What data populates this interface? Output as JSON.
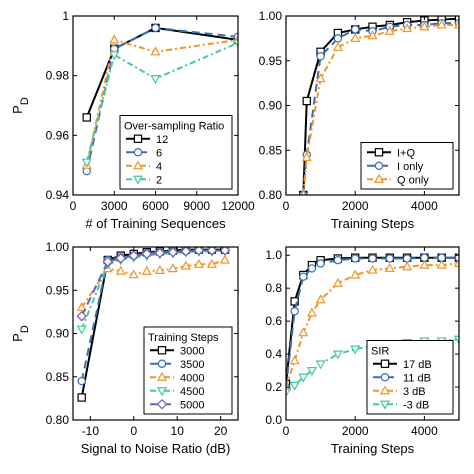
{
  "colors": {
    "black": "#000000",
    "blue": "#3a6fb0",
    "orange": "#f0962a",
    "green": "#44c8a4",
    "purple": "#6f61b0"
  },
  "chart_data": [
    {
      "panel": "top-left",
      "type": "line",
      "ylabel": "P_D",
      "xlabel": "# of Training Sequences",
      "xlim": [
        0,
        12000
      ],
      "ylim": [
        0.94,
        1.0
      ],
      "xticks": [
        "0",
        "3000",
        "6000",
        "9000",
        "12000"
      ],
      "yticks": [
        "0.94",
        "0.96",
        "0.98",
        "1"
      ],
      "legend": {
        "title": "Over-sampling Ratio",
        "position": "bottom-right"
      },
      "series": [
        {
          "name": "12",
          "color": "black",
          "dash": "solid",
          "marker": "square",
          "x": [
            1000,
            3000,
            6000,
            12000
          ],
          "y": [
            0.966,
            0.989,
            0.996,
            0.992
          ]
        },
        {
          "name": "6",
          "color": "blue",
          "dash": "dash",
          "marker": "circle",
          "x": [
            1000,
            3000,
            6000,
            12000
          ],
          "y": [
            0.948,
            0.989,
            0.996,
            0.993
          ]
        },
        {
          "name": "4",
          "color": "orange",
          "dash": "dashdot",
          "marker": "triangle-up",
          "x": [
            1000,
            3000,
            6000,
            12000
          ],
          "y": [
            0.95,
            0.992,
            0.988,
            0.992
          ]
        },
        {
          "name": "2",
          "color": "green",
          "dash": "dashdot",
          "marker": "triangle-down",
          "x": [
            1000,
            3000,
            6000,
            12000
          ],
          "y": [
            0.951,
            0.987,
            0.979,
            0.991
          ]
        }
      ]
    },
    {
      "panel": "top-right",
      "type": "line",
      "ylabel": "",
      "xlabel": "Training Steps",
      "xlim": [
        0,
        5000
      ],
      "ylim": [
        0.8,
        1.0
      ],
      "xticks": [
        "0",
        "2000",
        "4000"
      ],
      "yticks": [
        "0.80",
        "0.85",
        "0.90",
        "0.95",
        "1.00"
      ],
      "legend": {
        "title": "",
        "position": "bottom-right"
      },
      "series": [
        {
          "name": "I+Q",
          "color": "black",
          "dash": "solid",
          "marker": "square",
          "x": [
            500,
            600,
            1000,
            1500,
            2000,
            2500,
            3000,
            3500,
            4000,
            4500,
            5000
          ],
          "y": [
            0.8,
            0.905,
            0.96,
            0.981,
            0.985,
            0.988,
            0.99,
            0.993,
            0.995,
            0.996,
            0.997
          ]
        },
        {
          "name": "I only",
          "color": "blue",
          "dash": "dash",
          "marker": "circle",
          "x": [
            500,
            600,
            1000,
            1500,
            2000,
            2500,
            3000,
            3500,
            4000,
            4500,
            5000
          ],
          "y": [
            0.8,
            0.845,
            0.955,
            0.975,
            0.985,
            0.983,
            0.988,
            0.99,
            0.99,
            0.992,
            0.992
          ]
        },
        {
          "name": "Q only",
          "color": "orange",
          "dash": "dashdot",
          "marker": "triangle-up",
          "x": [
            500,
            600,
            1000,
            1500,
            2000,
            2500,
            3000,
            3500,
            4000,
            4500,
            5000
          ],
          "y": [
            0.8,
            0.842,
            0.93,
            0.965,
            0.975,
            0.978,
            0.983,
            0.986,
            0.988,
            0.99,
            0.99
          ]
        }
      ]
    },
    {
      "panel": "bottom-left",
      "type": "line",
      "ylabel": "P_D",
      "xlabel": "Signal to Noise Ratio (dB)",
      "xlim": [
        -14,
        24
      ],
      "ylim": [
        0.8,
        1.0
      ],
      "xticks": [
        "-10",
        "0",
        "10",
        "20"
      ],
      "yticks": [
        "0.80",
        "0.85",
        "0.90",
        "0.95",
        "1.00"
      ],
      "legend": {
        "title": "Training Steps",
        "position": "bottom-right"
      },
      "series": [
        {
          "name": "3000",
          "color": "black",
          "dash": "solid",
          "marker": "square",
          "x": [
            -12,
            -6,
            -3,
            0,
            3,
            6,
            9,
            12,
            15,
            18,
            21
          ],
          "y": [
            0.826,
            0.985,
            0.99,
            0.992,
            0.994,
            0.995,
            0.996,
            0.997,
            0.997,
            0.997,
            0.997
          ]
        },
        {
          "name": "3500",
          "color": "blue",
          "dash": "dash",
          "marker": "circle",
          "x": [
            -12,
            -6,
            -3,
            0,
            3,
            6,
            9,
            12,
            15,
            18,
            21
          ],
          "y": [
            0.845,
            0.985,
            0.988,
            0.99,
            0.993,
            0.994,
            0.995,
            0.995,
            0.996,
            0.996,
            0.996
          ]
        },
        {
          "name": "4000",
          "color": "orange",
          "dash": "dashdot",
          "marker": "triangle-up",
          "x": [
            -12,
            -6,
            -3,
            0,
            3,
            6,
            9,
            12,
            15,
            18,
            21
          ],
          "y": [
            0.93,
            0.975,
            0.972,
            0.968,
            0.972,
            0.973,
            0.975,
            0.978,
            0.98,
            0.98,
            0.985
          ]
        },
        {
          "name": "4500",
          "color": "green",
          "dash": "dashdot",
          "marker": "triangle-down",
          "x": [
            -12,
            -6,
            -3,
            0,
            3,
            6,
            9,
            12,
            15,
            18,
            21
          ],
          "y": [
            0.905,
            0.98,
            0.985,
            0.988,
            0.99,
            0.992,
            0.993,
            0.994,
            0.995,
            0.995,
            0.996
          ]
        },
        {
          "name": "5000",
          "color": "purple",
          "dash": "dash",
          "marker": "diamond",
          "x": [
            -12,
            -6,
            -3,
            0,
            3,
            6,
            9,
            12,
            15,
            18,
            21
          ],
          "y": [
            0.92,
            0.983,
            0.987,
            0.99,
            0.992,
            0.993,
            0.994,
            0.995,
            0.996,
            0.996,
            0.996
          ]
        }
      ]
    },
    {
      "panel": "bottom-right",
      "type": "line",
      "ylabel": "",
      "xlabel": "Training Steps",
      "xlim": [
        0,
        5000
      ],
      "ylim": [
        0,
        1.05
      ],
      "xticks": [
        "0",
        "2000",
        "4000"
      ],
      "yticks": [
        "0.0",
        "0.2",
        "0.4",
        "0.6",
        "0.8",
        "1.0"
      ],
      "legend": {
        "title": "SIR",
        "position": "bottom-right"
      },
      "series": [
        {
          "name": "17 dB",
          "color": "black",
          "dash": "solid",
          "marker": "square",
          "x": [
            0,
            250,
            500,
            750,
            1000,
            1500,
            2000,
            2500,
            3000,
            3500,
            4000,
            4500,
            5000
          ],
          "y": [
            0.22,
            0.72,
            0.88,
            0.94,
            0.97,
            0.98,
            0.985,
            0.985,
            0.985,
            0.985,
            0.985,
            0.985,
            0.985
          ]
        },
        {
          "name": "11 dB",
          "color": "blue",
          "dash": "dash",
          "marker": "circle",
          "x": [
            0,
            250,
            500,
            750,
            1000,
            1500,
            2000,
            2500,
            3000,
            3500,
            4000,
            4500,
            5000
          ],
          "y": [
            0.2,
            0.66,
            0.87,
            0.92,
            0.95,
            0.97,
            0.98,
            0.98,
            0.98,
            0.98,
            0.985,
            0.985,
            0.985
          ]
        },
        {
          "name": "3 dB",
          "color": "orange",
          "dash": "dashdot",
          "marker": "triangle-up",
          "x": [
            0,
            250,
            500,
            750,
            1000,
            1500,
            2000,
            2500,
            3000,
            3500,
            4000,
            4500,
            5000
          ],
          "y": [
            0.2,
            0.36,
            0.53,
            0.65,
            0.73,
            0.83,
            0.88,
            0.91,
            0.92,
            0.93,
            0.94,
            0.94,
            0.95
          ]
        },
        {
          "name": "-3 dB",
          "color": "green",
          "dash": "dashdot",
          "marker": "triangle-down",
          "x": [
            0,
            250,
            500,
            750,
            1000,
            1500,
            2000,
            2500,
            3000,
            3500,
            4000,
            4500,
            5000
          ],
          "y": [
            0.17,
            0.21,
            0.26,
            0.3,
            0.34,
            0.4,
            0.43,
            0.45,
            0.46,
            0.47,
            0.48,
            0.48,
            0.49
          ]
        }
      ]
    }
  ]
}
